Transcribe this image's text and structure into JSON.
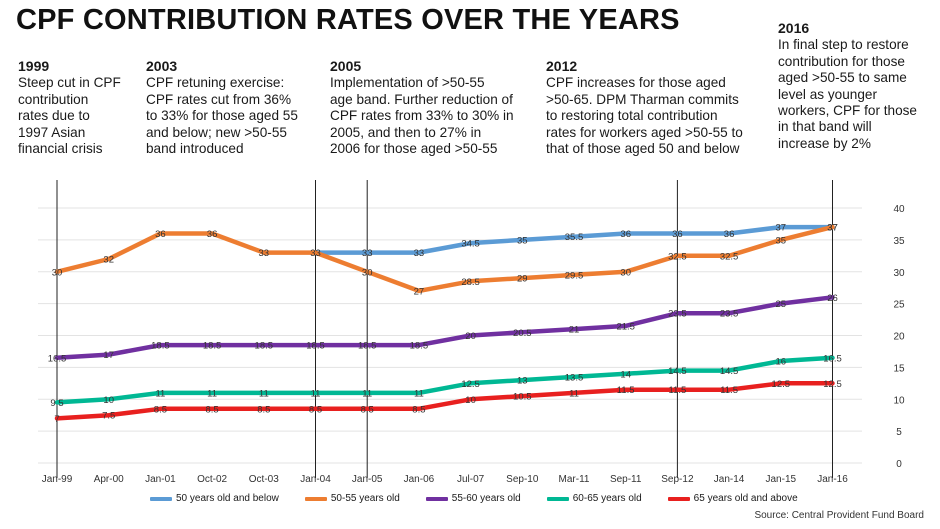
{
  "title": "CPF CONTRIBUTION RATES OVER THE YEARS",
  "notes": [
    {
      "year": "1999",
      "text": "Steep cut in CPF\ncontribution\nrates due to\n1997 Asian\nfinancial crisis"
    },
    {
      "year": "2003",
      "text": "CPF retuning exercise:\nCPF rates cut from 36%\nto 33% for those aged 55\nand below; new >50-55\nband introduced"
    },
    {
      "year": "2005",
      "text": "Implementation of >50-55\nage band. Further reduction of\nCPF rates from 33% to 30% in\n2005, and then to 27% in\n2006 for those aged >50-55"
    },
    {
      "year": "2012",
      "text": "CPF increases for those aged\n>50-65. DPM Tharman commits\nto restoring total contribution\nrates for workers aged >50-55 to\nthat of those aged 50 and below"
    },
    {
      "year": "2016",
      "text": "In final step to restore\ncontribution for those\naged >50-55 to same\nlevel as younger\nworkers, CPF for those\nin that band will\nincrease by 2%"
    }
  ],
  "source": "Source: Central Provident Fund Board",
  "chart_data": {
    "type": "line",
    "categories": [
      "Jan-99",
      "Apr-00",
      "Jan-01",
      "Oct-02",
      "Oct-03",
      "Jan-04",
      "Jan-05",
      "Jan-06",
      "Jul-07",
      "Sep-10",
      "Mar-11",
      "Sep-11",
      "Sep-12",
      "Jan-14",
      "Jan-15",
      "Jan-16"
    ],
    "ylim": [
      0,
      40
    ],
    "yticks": [
      0,
      5,
      10,
      15,
      20,
      25,
      30,
      35,
      40
    ],
    "grid": true,
    "legend_position": "bottom",
    "series": [
      {
        "name": "50 years old and below",
        "color": "#5b9bd5",
        "values": [
          null,
          null,
          null,
          null,
          null,
          33,
          33,
          33,
          34.5,
          35,
          35.5,
          36,
          36,
          36,
          37,
          37
        ],
        "labels": [
          "",
          "",
          "",
          "",
          "",
          "",
          "33",
          "33",
          "34.5",
          "35",
          "35.5",
          "36",
          "36",
          "36",
          "37",
          "37"
        ]
      },
      {
        "name": "50-55 years old",
        "color": "#ed7d31",
        "values": [
          30,
          32,
          36,
          36,
          33,
          33,
          30,
          27,
          28.5,
          29,
          29.5,
          30,
          32.5,
          32.5,
          35,
          37
        ],
        "labels": [
          "30",
          "32",
          "36",
          "36",
          "33",
          "33",
          "30",
          "27",
          "28.5",
          "29",
          "29.5",
          "30",
          "32.5",
          "32.5",
          "35",
          "37"
        ]
      },
      {
        "name": "55-60 years old",
        "color": "#7030a0",
        "values": [
          16.5,
          17,
          18.5,
          18.5,
          18.5,
          18.5,
          18.5,
          18.5,
          20,
          20.5,
          21,
          21.5,
          23.5,
          23.5,
          25,
          26
        ],
        "labels": [
          "16.5",
          "17",
          "18.5",
          "18.5",
          "18.5",
          "18.5",
          "18.5",
          "18.5",
          "20",
          "20.5",
          "21",
          "21.5",
          "23.5",
          "23.5",
          "25",
          "26"
        ]
      },
      {
        "name": "60-65 years old",
        "color": "#00b894",
        "values": [
          9.5,
          10,
          11,
          11,
          11,
          11,
          11,
          11,
          12.5,
          13,
          13.5,
          14,
          14.5,
          14.5,
          16,
          16.5
        ],
        "labels": [
          "9.5",
          "10",
          "11",
          "11",
          "11",
          "11",
          "11",
          "11",
          "12.5",
          "13",
          "13.5",
          "14",
          "14.5",
          "14.5",
          "16",
          "16.5"
        ]
      },
      {
        "name": "65 years old and above",
        "color": "#e8201f",
        "values": [
          7,
          7.5,
          8.5,
          8.5,
          8.5,
          8.5,
          8.5,
          8.5,
          10,
          10.5,
          11,
          11.5,
          11.5,
          11.5,
          12.5,
          12.5
        ],
        "labels": [
          "7",
          "7.5",
          "8.5",
          "8.5",
          "8.5",
          "8.5",
          "8.5",
          "8.5",
          "10",
          "10.5",
          "11",
          "11.5",
          "11.5",
          "11.5",
          "12.5",
          "12.5"
        ]
      }
    ],
    "event_markers": [
      "Jan-99",
      "Jan-04",
      "Jan-05",
      "Sep-12",
      "Jan-16"
    ]
  }
}
